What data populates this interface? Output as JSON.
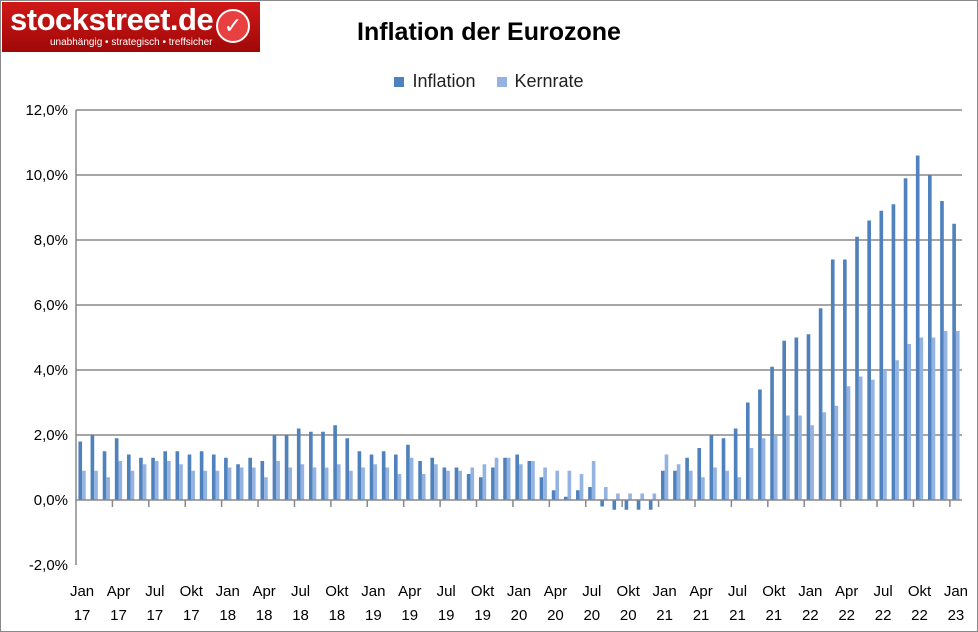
{
  "logo": {
    "name": "stockstreet.de",
    "tagline": "unabhängig • strategisch • treffsicher"
  },
  "chart_data": {
    "type": "bar",
    "title": "Inflation der Eurozone",
    "legend_position": "top",
    "grid": true,
    "ylim": [
      -2,
      12
    ],
    "y_ticks": [
      "-2,0%",
      "0,0%",
      "2,0%",
      "4,0%",
      "6,0%",
      "8,0%",
      "10,0%",
      "12,0%"
    ],
    "x_tick_labels": [
      [
        "Jan",
        "17"
      ],
      [
        "Apr",
        "17"
      ],
      [
        "Jul",
        "17"
      ],
      [
        "Okt",
        "17"
      ],
      [
        "Jan",
        "18"
      ],
      [
        "Apr",
        "18"
      ],
      [
        "Jul",
        "18"
      ],
      [
        "Okt",
        "18"
      ],
      [
        "Jan",
        "19"
      ],
      [
        "Apr",
        "19"
      ],
      [
        "Jul",
        "19"
      ],
      [
        "Okt",
        "19"
      ],
      [
        "Jan",
        "20"
      ],
      [
        "Apr",
        "20"
      ],
      [
        "Jul",
        "20"
      ],
      [
        "Okt",
        "20"
      ],
      [
        "Jan",
        "21"
      ],
      [
        "Apr",
        "21"
      ],
      [
        "Jul",
        "21"
      ],
      [
        "Okt",
        "21"
      ],
      [
        "Jan",
        "22"
      ],
      [
        "Apr",
        "22"
      ],
      [
        "Jul",
        "22"
      ],
      [
        "Okt",
        "22"
      ],
      [
        "Jan",
        "23"
      ]
    ],
    "x_range": [
      "Jan 2017",
      "Jan 2023"
    ],
    "series": [
      {
        "name": "Inflation",
        "color": "#4f81bd",
        "values": [
          1.8,
          2.0,
          1.5,
          1.9,
          1.4,
          1.3,
          1.3,
          1.5,
          1.5,
          1.4,
          1.5,
          1.4,
          1.3,
          1.1,
          1.3,
          1.2,
          2.0,
          2.0,
          2.2,
          2.1,
          2.1,
          2.3,
          1.9,
          1.5,
          1.4,
          1.5,
          1.4,
          1.7,
          1.2,
          1.3,
          1.0,
          1.0,
          0.8,
          0.7,
          1.0,
          1.3,
          1.4,
          1.2,
          0.7,
          0.3,
          0.1,
          0.3,
          0.4,
          -0.2,
          -0.3,
          -0.3,
          -0.3,
          -0.3,
          0.9,
          0.9,
          1.3,
          1.6,
          2.0,
          1.9,
          2.2,
          3.0,
          3.4,
          4.1,
          4.9,
          5.0,
          5.1,
          5.9,
          7.4,
          7.4,
          8.1,
          8.6,
          8.9,
          9.1,
          9.9,
          10.6,
          10.0,
          9.2,
          8.5
        ]
      },
      {
        "name": "Kernrate",
        "color": "#95b3e0",
        "values": [
          0.9,
          0.9,
          0.7,
          1.2,
          0.9,
          1.1,
          1.2,
          1.2,
          1.1,
          0.9,
          0.9,
          0.9,
          1.0,
          1.0,
          1.0,
          0.7,
          1.2,
          1.0,
          1.1,
          1.0,
          1.0,
          1.1,
          0.9,
          1.0,
          1.1,
          1.0,
          0.8,
          1.3,
          0.8,
          1.1,
          0.9,
          0.9,
          1.0,
          1.1,
          1.3,
          1.3,
          1.1,
          1.2,
          1.0,
          0.9,
          0.9,
          0.8,
          1.2,
          0.4,
          0.2,
          0.2,
          0.2,
          0.2,
          1.4,
          1.1,
          0.9,
          0.7,
          1.0,
          0.9,
          0.7,
          1.6,
          1.9,
          2.0,
          2.6,
          2.6,
          2.3,
          2.7,
          2.9,
          3.5,
          3.8,
          3.7,
          4.0,
          4.3,
          4.8,
          5.0,
          5.0,
          5.2,
          5.2
        ]
      }
    ]
  }
}
